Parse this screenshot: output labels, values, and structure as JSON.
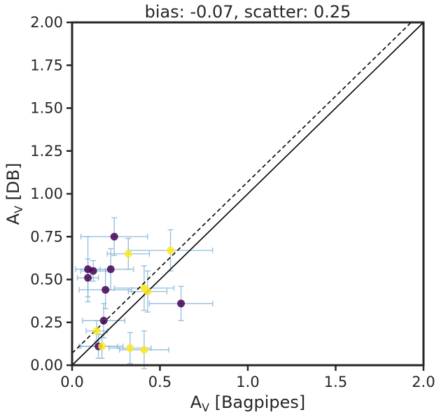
{
  "chart_data": {
    "type": "scatter",
    "title": "bias: -0.07, scatter: 0.25",
    "xlabel_main": "A",
    "xlabel_sub": "V",
    "xlabel_rest": " [Bagpipes]",
    "ylabel_main": "A",
    "ylabel_sub": "V",
    "ylabel_rest": " [DB]",
    "xlim": [
      0,
      2
    ],
    "ylim": [
      0,
      2
    ],
    "xticks": [
      "0.0",
      "0.5",
      "1.0",
      "1.5",
      "2.0"
    ],
    "xtick_values": [
      0,
      0.5,
      1.0,
      1.5,
      2.0
    ],
    "yticks": [
      "0.00",
      "0.25",
      "0.50",
      "0.75",
      "1.00",
      "1.25",
      "1.50",
      "1.75",
      "2.00"
    ],
    "ytick_values": [
      0,
      0.25,
      0.5,
      0.75,
      1.0,
      1.25,
      1.5,
      1.75,
      2.0
    ],
    "grid": false,
    "reference_lines": [
      {
        "style": "solid",
        "slope": 1.0,
        "intercept": 0.0
      },
      {
        "style": "dashed",
        "slope": 1.0,
        "intercept": 0.07
      }
    ],
    "colors": {
      "purple": "#440154",
      "yellow": "#fde725",
      "error": "#7fb2d5"
    },
    "points": [
      {
        "x": 0.09,
        "y": 0.56,
        "xerr": 0.07,
        "yerr": 0.19,
        "color": "purple"
      },
      {
        "x": 0.12,
        "y": 0.55,
        "xerr": 0.07,
        "yerr": 0.06,
        "color": "purple"
      },
      {
        "x": 0.09,
        "y": 0.51,
        "xerr": 0.06,
        "yerr": 0.11,
        "color": "purple"
      },
      {
        "x": 0.22,
        "y": 0.56,
        "xerr": 0.13,
        "yerr": 0.12,
        "color": "purple"
      },
      {
        "x": 0.24,
        "y": 0.75,
        "xerr": 0.19,
        "yerr": 0.11,
        "color": "purple"
      },
      {
        "x": 0.19,
        "y": 0.44,
        "xerr": 0.15,
        "yerr": 0.11,
        "color": "purple"
      },
      {
        "x": 0.18,
        "y": 0.26,
        "xerr": 0.12,
        "yerr": 0.1,
        "color": "purple"
      },
      {
        "x": 0.15,
        "y": 0.11,
        "xerr": 0.11,
        "yerr": 0.07,
        "color": "purple"
      },
      {
        "x": 0.62,
        "y": 0.36,
        "xerr": 0.18,
        "yerr": 0.1,
        "color": "purple"
      },
      {
        "x": 0.32,
        "y": 0.65,
        "xerr": 0.12,
        "yerr": 0.09,
        "color": "yellow"
      },
      {
        "x": 0.56,
        "y": 0.67,
        "xerr": 0.24,
        "yerr": 0.12,
        "color": "yellow"
      },
      {
        "x": 0.41,
        "y": 0.45,
        "xerr": 0.17,
        "yerr": 0.13,
        "color": "yellow"
      },
      {
        "x": 0.43,
        "y": 0.43,
        "xerr": 0.11,
        "yerr": 0.12,
        "color": "yellow"
      },
      {
        "x": 0.14,
        "y": 0.2,
        "xerr": 0.06,
        "yerr": 0.06,
        "color": "yellow"
      },
      {
        "x": 0.17,
        "y": 0.11,
        "xerr": 0.12,
        "yerr": 0.07,
        "color": "yellow"
      },
      {
        "x": 0.33,
        "y": 0.1,
        "xerr": 0.12,
        "yerr": 0.09,
        "color": "yellow"
      },
      {
        "x": 0.41,
        "y": 0.09,
        "xerr": 0.14,
        "yerr": 0.11,
        "color": "yellow"
      }
    ]
  }
}
